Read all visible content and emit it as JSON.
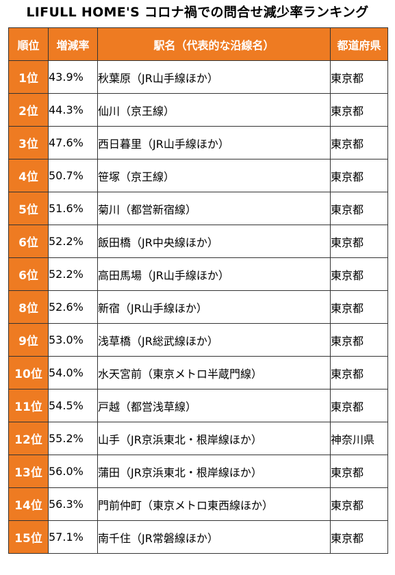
{
  "title": "LIFULL HOME'S コロナ禍での問合せ減少率ランキング",
  "headers": {
    "rank": "順位",
    "rate": "増減率",
    "station": "駅名（代表的な沿線名）",
    "prefecture": "都道府県"
  },
  "rows": [
    {
      "rank": "1位",
      "rate": "43.9%",
      "station": "秋葉原（JR山手線ほか）",
      "prefecture": "東京都"
    },
    {
      "rank": "2位",
      "rate": "44.3%",
      "station": "仙川（京王線）",
      "prefecture": "東京都"
    },
    {
      "rank": "3位",
      "rate": "47.6%",
      "station": "西日暮里（JR山手線ほか）",
      "prefecture": "東京都"
    },
    {
      "rank": "4位",
      "rate": "50.7%",
      "station": "笹塚（京王線）",
      "prefecture": "東京都"
    },
    {
      "rank": "5位",
      "rate": "51.6%",
      "station": "菊川（都営新宿線）",
      "prefecture": "東京都"
    },
    {
      "rank": "6位",
      "rate": "52.2%",
      "station": "飯田橋（JR中央線ほか）",
      "prefecture": "東京都"
    },
    {
      "rank": "6位",
      "rate": "52.2%",
      "station": "高田馬場（JR山手線ほか）",
      "prefecture": "東京都"
    },
    {
      "rank": "8位",
      "rate": "52.6%",
      "station": "新宿（JR山手線ほか）",
      "prefecture": "東京都"
    },
    {
      "rank": "9位",
      "rate": "53.0%",
      "station": "浅草橋（JR総武線ほか）",
      "prefecture": "東京都"
    },
    {
      "rank": "10位",
      "rate": "54.0%",
      "station": "水天宮前（東京メトロ半蔵門線）",
      "prefecture": "東京都"
    },
    {
      "rank": "11位",
      "rate": "54.5%",
      "station": "戸越（都営浅草線）",
      "prefecture": "東京都"
    },
    {
      "rank": "12位",
      "rate": "55.2%",
      "station": "山手（JR京浜東北・根岸線ほか）",
      "prefecture": "神奈川県"
    },
    {
      "rank": "13位",
      "rate": "56.0%",
      "station": "蒲田（JR京浜東北・根岸線ほか）",
      "prefecture": "東京都"
    },
    {
      "rank": "14位",
      "rate": "56.3%",
      "station": "門前仲町（東京メトロ東西線ほか）",
      "prefecture": "東京都"
    },
    {
      "rank": "15位",
      "rate": "57.1%",
      "station": "南千住（JR常磐線ほか）",
      "prefecture": "東京都"
    }
  ],
  "colors": {
    "header_bg": "#ee7b22",
    "rank_bg": "#ee7b22",
    "header_text": "#ffffff",
    "body_text": "#000000",
    "border": "#333333"
  }
}
